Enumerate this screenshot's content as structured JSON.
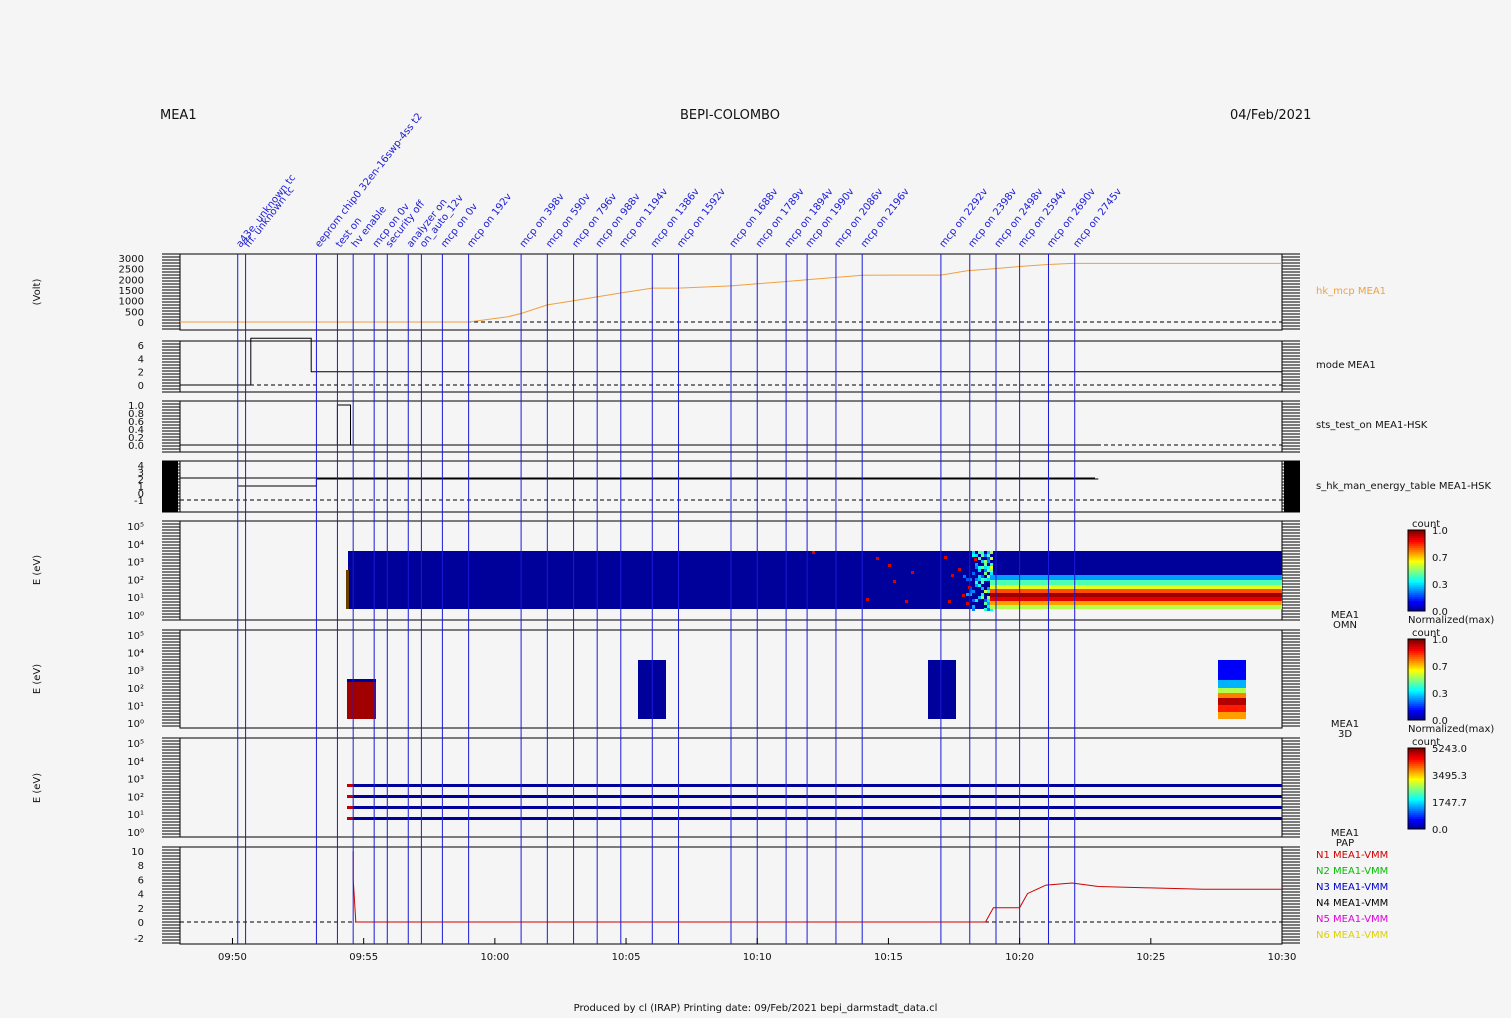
{
  "header": {
    "left": "MEA1",
    "center": "BEPI-COLOMBO",
    "right": "04/Feb/2021"
  },
  "footer": {
    "text": "Produced by cl (IRAP)    Printing date: 09/Feb/2021    bepi_darmstadt_data.cl"
  },
  "colors": {
    "event_line": "#1a1ad9",
    "mcp": "#f0a040",
    "mode": "#000000"
  },
  "chart_data": {
    "type": "line",
    "time_range": [
      "09:48",
      "10:30"
    ],
    "time_ticks": [
      "09:50",
      "09:55",
      "10:00",
      "10:05",
      "10:10",
      "10:15",
      "10:20",
      "10:25",
      "10:30"
    ],
    "events": [
      {
        "t": "09:50.2",
        "label": "a43e. unknown tc"
      },
      {
        "t": "09:50.5",
        "label": "fff. unknown tc"
      },
      {
        "t": "09:53.2",
        "label": "eeprom chip0 32en-16swp-4ss t2"
      },
      {
        "t": "09:54.0",
        "label": "test on"
      },
      {
        "t": "09:54.6",
        "label": "hv enable"
      },
      {
        "t": "09:55.4",
        "label": "mcp on 0v"
      },
      {
        "t": "09:55.9",
        "label": "security off"
      },
      {
        "t": "09:56.7",
        "label": "analyzer on"
      },
      {
        "t": "09:57.2",
        "label": "on_auto_12v"
      },
      {
        "t": "09:58.0",
        "label": "mcp on 0v"
      },
      {
        "t": "09:59.0",
        "label": "mcp on 192v"
      },
      {
        "t": "10:01.0",
        "label": "mcp on 398v"
      },
      {
        "t": "10:02.0",
        "label": "mcp on 590v"
      },
      {
        "t": "10:03.0",
        "label": "mcp on 796v"
      },
      {
        "t": "10:03.9",
        "label": "mcp on 988v"
      },
      {
        "t": "10:04.8",
        "label": "mcp on 1194v"
      },
      {
        "t": "10:06.0",
        "label": "mcp on 1386v"
      },
      {
        "t": "10:07.0",
        "label": "mcp on 1592v"
      },
      {
        "t": "10:09.0",
        "label": "mcp on 1688v"
      },
      {
        "t": "10:10.0",
        "label": "mcp on 1789v"
      },
      {
        "t": "10:11.1",
        "label": "mcp on 1894v"
      },
      {
        "t": "10:11.9",
        "label": "mcp on 1990v"
      },
      {
        "t": "10:13.0",
        "label": "mcp on 2086v"
      },
      {
        "t": "10:14.0",
        "label": "mcp on 2196v"
      },
      {
        "t": "10:17.0",
        "label": "mcp on 2292v"
      },
      {
        "t": "10:18.1",
        "label": "mcp on 2398v"
      },
      {
        "t": "10:19.1",
        "label": "mcp on 2498v"
      },
      {
        "t": "10:20.0",
        "label": "mcp on 2594v"
      },
      {
        "t": "10:21.1",
        "label": "mcp on 2690v"
      },
      {
        "t": "10:22.1",
        "label": "mcp on 2745v"
      }
    ],
    "panels": {
      "mcp": {
        "ylabel": "(Volt)",
        "series_name": "hk_mcp MEA1",
        "yticks": [
          "3000",
          "2500",
          "2000",
          "1500",
          "1000",
          "500",
          "0"
        ],
        "ylim": [
          -300,
          3200
        ],
        "t": [
          "09:48",
          "09:59.0",
          "10:00.5",
          "10:01.0",
          "10:02.0",
          "10:03.0",
          "10:04.0",
          "10:05.0",
          "10:06.0",
          "10:07.0",
          "10:09.0",
          "10:10.0",
          "10:11.0",
          "10:12.0",
          "10:13.0",
          "10:14.0",
          "10:15.0",
          "10:17.0",
          "10:18.0",
          "10:19.0",
          "10:20.0",
          "10:21.0",
          "10:22.0",
          "10:30"
        ],
        "v": [
          0,
          0,
          250,
          400,
          800,
          1000,
          1200,
          1400,
          1590,
          1590,
          1690,
          1790,
          1890,
          1990,
          2090,
          2190,
          2200,
          2200,
          2400,
          2500,
          2600,
          2690,
          2745,
          2745
        ]
      },
      "mode": {
        "series_name": "mode MEA1",
        "yticks": [
          "6",
          "4",
          "2",
          "0"
        ],
        "ylim": [
          -1,
          8
        ],
        "t": [
          "09:48",
          "09:50.7",
          "09:50.7",
          "09:53.0",
          "09:53.0",
          "10:30"
        ],
        "v": [
          0,
          0,
          7,
          7,
          2,
          2
        ]
      },
      "sts": {
        "series_name": "sts_test_on MEA1-HSK",
        "yticks": [
          "1.0",
          "0.8",
          "0.6",
          "0.4",
          "0.2",
          "0.0"
        ],
        "ylim": [
          -0.1,
          1.1
        ],
        "t": [
          "09:50.2",
          "09:54.0",
          "09:54.0",
          "09:54.5",
          "09:54.5",
          "10:23"
        ],
        "v": [
          0,
          0,
          1,
          1,
          0,
          0
        ]
      },
      "energy_table": {
        "series_name": "s_hk_man_energy_table MEA1-HSK",
        "yticks": [
          "4",
          "3",
          "2",
          "1",
          "0",
          "-1"
        ],
        "ylim": [
          -1.3,
          4.3
        ],
        "t": [
          "09:50.2",
          "09:53.2",
          "09:53.2",
          "10:23"
        ],
        "v": [
          1,
          1,
          2,
          2
        ]
      },
      "omni": {
        "ylabel": "E (eV)",
        "label": "MEA1",
        "sublabel": "OMN",
        "yticks": [
          "10⁵",
          "10⁴",
          "10³",
          "10²",
          "10¹",
          "10⁰"
        ],
        "colorbar": {
          "unit": "count",
          "ticks": [
            "1.0",
            "0.7",
            "0.3",
            "0.0"
          ],
          "scale_label": "Normalized(max)"
        }
      },
      "threeD": {
        "ylabel": "E (eV)",
        "label": "MEA1",
        "sublabel": "3D",
        "yticks": [
          "10⁵",
          "10⁴",
          "10³",
          "10²",
          "10¹",
          "10⁰"
        ],
        "colorbar": {
          "unit": "count",
          "ticks": [
            "1.0",
            "0.7",
            "0.3",
            "0.0"
          ],
          "scale_label": "Normalized(max)"
        }
      },
      "pap": {
        "ylabel": "E (eV)",
        "label": "MEA1",
        "sublabel": "PAP",
        "yticks": [
          "10⁵",
          "10⁴",
          "10³",
          "10²",
          "10¹",
          "10⁰"
        ],
        "colorbar": {
          "unit": "count",
          "ticks": [
            "5243.0",
            "3495.3",
            "1747.7",
            "0.0"
          ]
        }
      },
      "vmm": {
        "yticks": [
          "10",
          "8",
          "6",
          "4",
          "2",
          "0",
          "-2"
        ],
        "ylim": [
          -3,
          10.5
        ],
        "legend": [
          {
            "name": "N1 MEA1-VMM",
            "color": "#d00000"
          },
          {
            "name": "N2 MEA1-VMM",
            "color": "#00c000"
          },
          {
            "name": "N3 MEA1-VMM",
            "color": "#0000d0"
          },
          {
            "name": "N4 MEA1-VMM",
            "color": "#000000"
          },
          {
            "name": "N5 MEA1-VMM",
            "color": "#e000e0"
          },
          {
            "name": "N6 MEA1-VMM",
            "color": "#e0d000"
          }
        ],
        "n1_t": [
          "09:54.6",
          "09:54.6",
          "09:54.7",
          "10:18.7",
          "10:19.0",
          "10:20.0",
          "10:20.3",
          "10:21.0",
          "10:22.0",
          "10:23.0",
          "10:25.0",
          "10:27.0",
          "10:30"
        ],
        "n1_v": [
          10,
          6,
          0,
          0,
          2,
          2,
          4,
          5.2,
          5.5,
          5,
          4.8,
          4.6,
          4.6
        ]
      }
    }
  }
}
